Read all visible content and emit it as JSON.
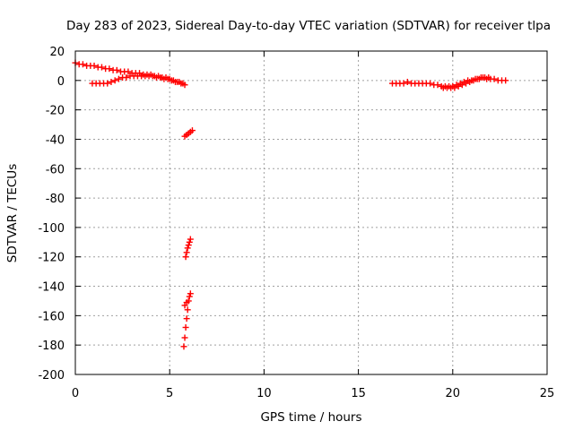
{
  "chart_data": {
    "type": "scatter",
    "title": "Day 283 of 2023, Sidereal Day-to-day VTEC variation (SDTVAR) for receiver tlpa",
    "xlabel": "GPS time / hours",
    "ylabel": "SDTVAR / TECUs",
    "xlim": [
      0,
      25
    ],
    "ylim": [
      -200,
      20
    ],
    "xticks": [
      0,
      5,
      10,
      15,
      20,
      25
    ],
    "yticks": [
      -200,
      -180,
      -160,
      -140,
      -120,
      -100,
      -80,
      -60,
      -40,
      -20,
      0,
      20
    ],
    "grid": true,
    "marker": "plus",
    "colors": {
      "series": "#ff0000"
    },
    "series": [
      {
        "values": [
          [
            0.0,
            12
          ],
          [
            0.2,
            11
          ],
          [
            0.4,
            11
          ],
          [
            0.6,
            10
          ],
          [
            0.8,
            10
          ],
          [
            1.0,
            10
          ],
          [
            1.2,
            9
          ],
          [
            1.4,
            9
          ],
          [
            1.6,
            8
          ],
          [
            1.8,
            8
          ],
          [
            2.0,
            7
          ],
          [
            2.2,
            7
          ],
          [
            2.4,
            6
          ],
          [
            2.6,
            6
          ],
          [
            2.8,
            6
          ],
          [
            3.0,
            5
          ],
          [
            3.2,
            5
          ],
          [
            3.4,
            5
          ],
          [
            3.6,
            4
          ],
          [
            3.8,
            4
          ],
          [
            4.0,
            4
          ],
          [
            4.2,
            3
          ],
          [
            4.4,
            3
          ],
          [
            4.6,
            2
          ],
          [
            4.8,
            2
          ],
          [
            5.0,
            1
          ],
          [
            5.2,
            0
          ],
          [
            5.4,
            -1
          ],
          [
            5.6,
            -2
          ],
          [
            5.8,
            -3
          ],
          [
            0.9,
            -2
          ],
          [
            1.1,
            -2
          ],
          [
            1.3,
            -2
          ],
          [
            1.5,
            -2
          ],
          [
            1.7,
            -2
          ],
          [
            1.9,
            -1
          ],
          [
            2.1,
            0
          ],
          [
            2.3,
            1
          ],
          [
            2.5,
            2
          ],
          [
            2.7,
            2
          ],
          [
            2.9,
            3
          ],
          [
            3.1,
            3
          ],
          [
            3.3,
            3
          ],
          [
            3.5,
            3
          ],
          [
            3.7,
            3
          ],
          [
            3.9,
            3
          ],
          [
            4.1,
            3
          ],
          [
            4.3,
            2
          ],
          [
            4.5,
            2
          ],
          [
            4.7,
            1
          ],
          [
            4.9,
            1
          ],
          [
            5.1,
            0
          ],
          [
            5.3,
            -1
          ],
          [
            5.5,
            -1
          ],
          [
            5.7,
            -2
          ],
          [
            5.8,
            -38
          ],
          [
            5.9,
            -37
          ],
          [
            6.0,
            -36
          ],
          [
            6.1,
            -35
          ],
          [
            6.2,
            -34
          ],
          [
            5.85,
            -120
          ],
          [
            5.9,
            -117
          ],
          [
            5.95,
            -114
          ],
          [
            6.0,
            -112
          ],
          [
            6.05,
            -110
          ],
          [
            6.1,
            -108
          ],
          [
            5.75,
            -181
          ],
          [
            5.8,
            -175
          ],
          [
            5.85,
            -168
          ],
          [
            5.9,
            -162
          ],
          [
            5.95,
            -156
          ],
          [
            6.0,
            -150
          ],
          [
            6.05,
            -147
          ],
          [
            6.1,
            -145
          ],
          [
            5.8,
            -153
          ],
          [
            5.9,
            -151
          ],
          [
            16.8,
            -2
          ],
          [
            17.0,
            -2
          ],
          [
            17.2,
            -2
          ],
          [
            17.4,
            -2
          ],
          [
            17.6,
            -1
          ],
          [
            17.8,
            -2
          ],
          [
            18.0,
            -2
          ],
          [
            18.2,
            -2
          ],
          [
            18.4,
            -2
          ],
          [
            18.6,
            -2
          ],
          [
            18.8,
            -2
          ],
          [
            19.0,
            -3
          ],
          [
            19.2,
            -3
          ],
          [
            19.4,
            -4
          ],
          [
            19.6,
            -4
          ],
          [
            19.8,
            -4
          ],
          [
            20.0,
            -4
          ],
          [
            20.2,
            -3
          ],
          [
            20.4,
            -2
          ],
          [
            20.6,
            -1
          ],
          [
            20.8,
            0
          ],
          [
            21.0,
            0
          ],
          [
            21.2,
            1
          ],
          [
            21.4,
            1
          ],
          [
            21.6,
            2
          ],
          [
            21.8,
            1
          ],
          [
            22.0,
            1
          ],
          [
            22.2,
            1
          ],
          [
            22.4,
            0
          ],
          [
            22.6,
            0
          ],
          [
            22.8,
            0
          ],
          [
            19.5,
            -5
          ],
          [
            19.7,
            -5
          ],
          [
            19.9,
            -5
          ],
          [
            20.1,
            -5
          ],
          [
            20.3,
            -4
          ],
          [
            20.5,
            -3
          ],
          [
            20.7,
            -2
          ],
          [
            20.9,
            -1
          ],
          [
            21.1,
            0
          ],
          [
            21.3,
            1
          ],
          [
            21.5,
            2
          ],
          [
            21.7,
            2
          ],
          [
            21.9,
            2
          ]
        ]
      }
    ]
  }
}
